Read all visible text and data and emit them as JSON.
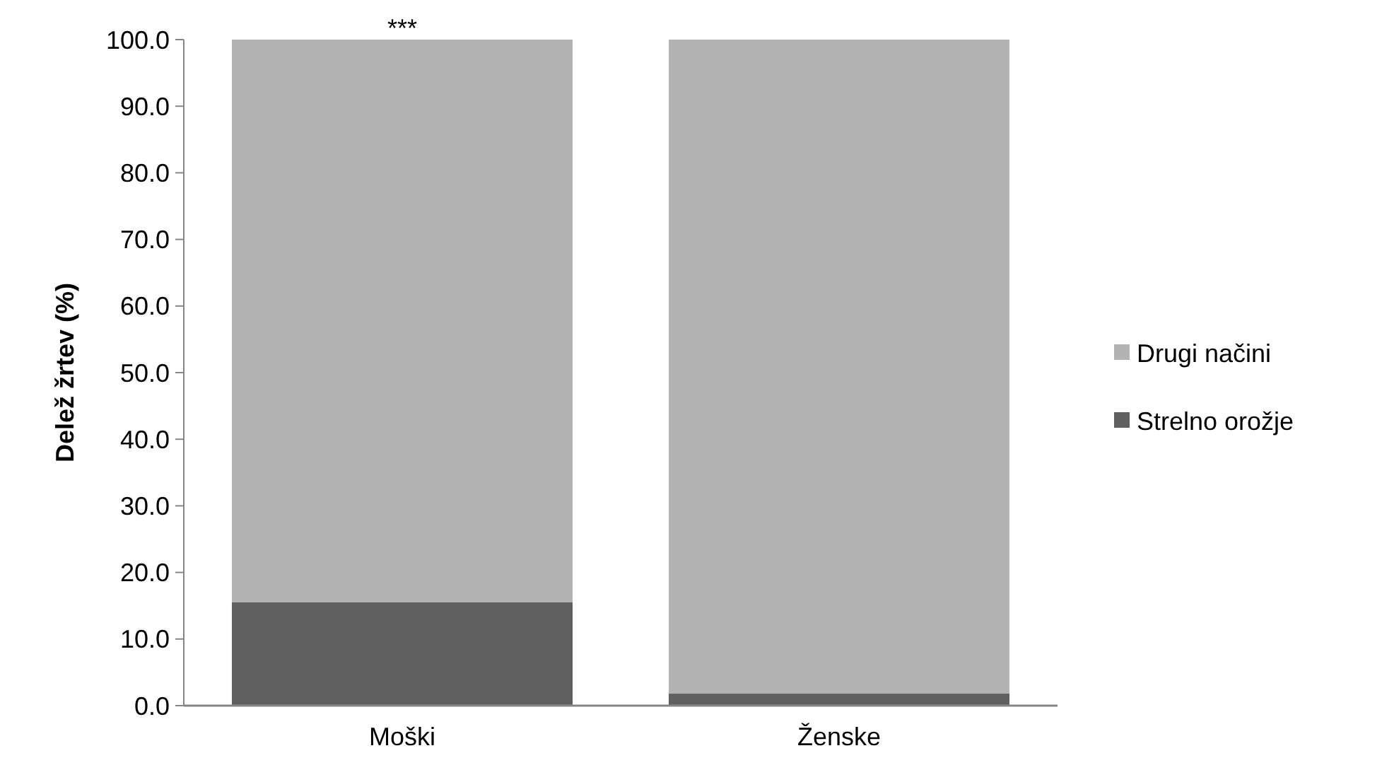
{
  "chart_data": {
    "type": "bar",
    "stacked": true,
    "categories": [
      "Moški",
      "Ženske"
    ],
    "ylabel": "Delež žrtev (%)",
    "ylim": [
      0,
      100
    ],
    "yticks": [
      {
        "value": 0,
        "label": "0.0"
      },
      {
        "value": 10,
        "label": "10.0"
      },
      {
        "value": 20,
        "label": "20.0"
      },
      {
        "value": 30,
        "label": "30.0"
      },
      {
        "value": 40,
        "label": "40.0"
      },
      {
        "value": 50,
        "label": "50.0"
      },
      {
        "value": 60,
        "label": "60.0"
      },
      {
        "value": 70,
        "label": "70.0"
      },
      {
        "value": 80,
        "label": "80.0"
      },
      {
        "value": 90,
        "label": "90.0"
      },
      {
        "value": 100,
        "label": "100.0"
      }
    ],
    "series": [
      {
        "name": "Strelno orožje",
        "color": "#606060",
        "values": [
          15.5,
          1.8
        ]
      },
      {
        "name": "Drugi načini",
        "color": "#b3b3b3",
        "values": [
          84.5,
          98.2
        ]
      }
    ],
    "annotations": [
      {
        "text": "***",
        "x": "Moški",
        "y": 100
      }
    ],
    "legend": "right",
    "grid": false
  }
}
